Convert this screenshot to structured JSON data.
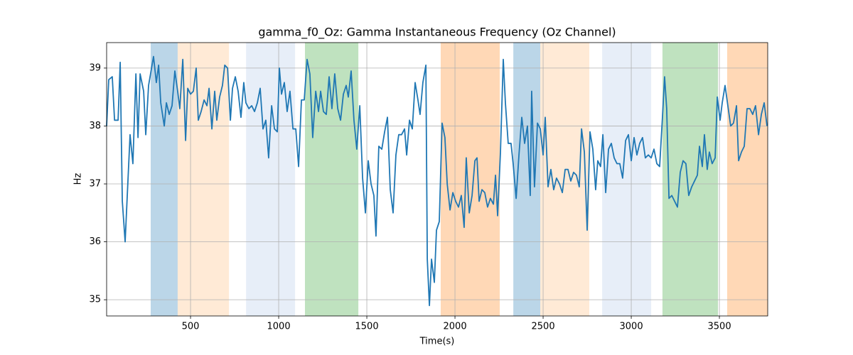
{
  "chart_data": {
    "type": "line",
    "title": "gamma_f0_Oz: Gamma Instantaneous Frequency (Oz Channel)",
    "xlabel": "Time(s)",
    "ylabel": "Hz",
    "color": "#1f77b4",
    "x": [
      24,
      36,
      56,
      69,
      89,
      101,
      113,
      129,
      157,
      173,
      190,
      202,
      214,
      234,
      246,
      262,
      290,
      306,
      319,
      331,
      351,
      363,
      379,
      395,
      411,
      427,
      439,
      456,
      472,
      484,
      500,
      516,
      532,
      544,
      560,
      577,
      593,
      605,
      621,
      637,
      649,
      665,
      681,
      694,
      710,
      726,
      738,
      754,
      770,
      786,
      802,
      814,
      831,
      847,
      863,
      879,
      895,
      911,
      927,
      943,
      960,
      976,
      992,
      1004,
      1016,
      1032,
      1048,
      1064,
      1081,
      1097,
      1113,
      1129,
      1145,
      1161,
      1177,
      1193,
      1210,
      1226,
      1238,
      1254,
      1270,
      1286,
      1302,
      1318,
      1335,
      1351,
      1367,
      1383,
      1395,
      1411,
      1427,
      1443,
      1460,
      1476,
      1492,
      1508,
      1524,
      1540,
      1552,
      1568,
      1585,
      1601,
      1617,
      1633,
      1649,
      1665,
      1681,
      1697,
      1714,
      1726,
      1742,
      1758,
      1774,
      1790,
      1802,
      1818,
      1835,
      1843,
      1855,
      1867,
      1883,
      1895,
      1911,
      1927,
      1943,
      1956,
      1972,
      1988,
      2004,
      2020,
      2036,
      2052,
      2064,
      2081,
      2097,
      2113,
      2125,
      2137,
      2153,
      2169,
      2185,
      2201,
      2218,
      2230,
      2242,
      2258,
      2274,
      2286,
      2302,
      2318,
      2330,
      2347,
      2363,
      2379,
      2395,
      2411,
      2427,
      2435,
      2451,
      2468,
      2484,
      2500,
      2512,
      2528,
      2544,
      2560,
      2576,
      2593,
      2609,
      2625,
      2641,
      2657,
      2673,
      2689,
      2705,
      2718,
      2734,
      2750,
      2766,
      2782,
      2798,
      2810,
      2826,
      2839,
      2855,
      2871,
      2887,
      2903,
      2919,
      2935,
      2951,
      2968,
      2984,
      3000,
      3016,
      3032,
      3048,
      3064,
      3080,
      3097,
      3113,
      3129,
      3145,
      3161,
      3177,
      3189,
      3201,
      3214,
      3230,
      3246,
      3262,
      3278,
      3294,
      3310,
      3326,
      3343,
      3359,
      3375,
      3387,
      3403,
      3415,
      3431,
      3443,
      3459,
      3476,
      3488,
      3504,
      3516,
      3532,
      3548,
      3564,
      3580,
      3597,
      3609,
      3625,
      3641,
      3657,
      3673,
      3689,
      3705,
      3722,
      3738,
      3754,
      3770
    ],
    "values": [
      38.0,
      38.8,
      38.85,
      38.1,
      38.1,
      39.1,
      36.7,
      36.0,
      37.85,
      37.35,
      38.9,
      37.8,
      38.9,
      38.6,
      37.85,
      38.7,
      39.2,
      38.75,
      39.05,
      38.4,
      38.0,
      38.4,
      38.2,
      38.35,
      38.95,
      38.6,
      38.3,
      39.15,
      37.75,
      38.65,
      38.55,
      38.6,
      39.0,
      38.1,
      38.25,
      38.45,
      38.35,
      38.65,
      37.95,
      38.6,
      38.1,
      38.5,
      38.7,
      39.05,
      39.0,
      38.1,
      38.65,
      38.85,
      38.6,
      38.15,
      38.75,
      38.4,
      38.3,
      38.35,
      38.25,
      38.4,
      38.65,
      37.95,
      38.1,
      37.45,
      38.35,
      37.95,
      37.9,
      39.0,
      38.55,
      38.75,
      38.25,
      38.6,
      37.95,
      37.95,
      37.3,
      38.45,
      38.45,
      39.15,
      38.9,
      37.8,
      38.6,
      38.25,
      38.6,
      38.25,
      38.2,
      38.85,
      38.3,
      38.9,
      38.3,
      38.1,
      38.55,
      38.7,
      38.5,
      38.95,
      38.1,
      37.6,
      38.35,
      37.1,
      36.5,
      37.4,
      37.0,
      36.8,
      36.1,
      37.65,
      37.6,
      37.9,
      38.15,
      36.9,
      36.5,
      37.5,
      37.85,
      37.85,
      37.95,
      37.5,
      38.1,
      37.95,
      38.75,
      38.45,
      38.2,
      38.75,
      39.05,
      35.7,
      34.9,
      35.7,
      35.3,
      36.2,
      36.35,
      38.05,
      37.8,
      37.0,
      36.55,
      36.85,
      36.7,
      36.6,
      36.8,
      36.25,
      37.45,
      36.5,
      36.8,
      37.4,
      37.45,
      36.7,
      36.9,
      36.85,
      36.6,
      36.75,
      36.65,
      37.15,
      36.45,
      37.55,
      39.15,
      38.4,
      37.7,
      37.7,
      37.35,
      36.75,
      37.5,
      38.15,
      37.7,
      38.0,
      36.8,
      38.6,
      36.95,
      38.05,
      37.95,
      37.5,
      38.15,
      36.95,
      37.25,
      36.9,
      37.1,
      37.0,
      36.85,
      37.25,
      37.25,
      37.05,
      37.2,
      37.15,
      36.95,
      37.95,
      37.55,
      36.2,
      37.9,
      37.6,
      36.9,
      37.4,
      37.3,
      37.85,
      36.85,
      37.6,
      37.7,
      37.45,
      37.35,
      37.35,
      37.1,
      37.75,
      37.85,
      37.4,
      37.8,
      37.5,
      37.7,
      37.8,
      37.45,
      37.5,
      37.45,
      37.6,
      37.35,
      37.3,
      38.15,
      38.85,
      38.3,
      36.75,
      36.8,
      36.7,
      36.6,
      37.2,
      37.4,
      37.35,
      36.8,
      36.95,
      37.05,
      37.15,
      37.65,
      37.3,
      37.85,
      37.25,
      37.55,
      37.35,
      37.45,
      38.5,
      38.1,
      38.4,
      38.7,
      38.35,
      38.0,
      38.05,
      38.35,
      37.4,
      37.55,
      37.65,
      38.3,
      38.3,
      38.2,
      38.35,
      37.85,
      38.2,
      38.4,
      38.0
    ],
    "spans": [
      {
        "start": 274,
        "end": 427,
        "color": "#1f77b4"
      },
      {
        "start": 427,
        "end": 718,
        "color": "#ffbb78"
      },
      {
        "start": 815,
        "end": 1093,
        "color": "#aec7e8"
      },
      {
        "start": 1149,
        "end": 1452,
        "color": "#2ca02c"
      },
      {
        "start": 1919,
        "end": 2254,
        "color": "#ff7f0e"
      },
      {
        "start": 2331,
        "end": 2484,
        "color": "#1f77b4"
      },
      {
        "start": 2484,
        "end": 2762,
        "color": "#ffbb78"
      },
      {
        "start": 2835,
        "end": 3113,
        "color": "#aec7e8"
      },
      {
        "start": 3177,
        "end": 3492,
        "color": "#2ca02c"
      },
      {
        "start": 3544,
        "end": 3774,
        "color": "#ff7f0e"
      }
    ],
    "xlim": [
      24,
      3774
    ],
    "ylim": [
      34.72,
      39.44
    ],
    "xticks": [
      500,
      1000,
      1500,
      2000,
      2500,
      3000,
      3500
    ],
    "yticks": [
      35,
      36,
      37,
      38,
      39
    ],
    "grid": true
  }
}
